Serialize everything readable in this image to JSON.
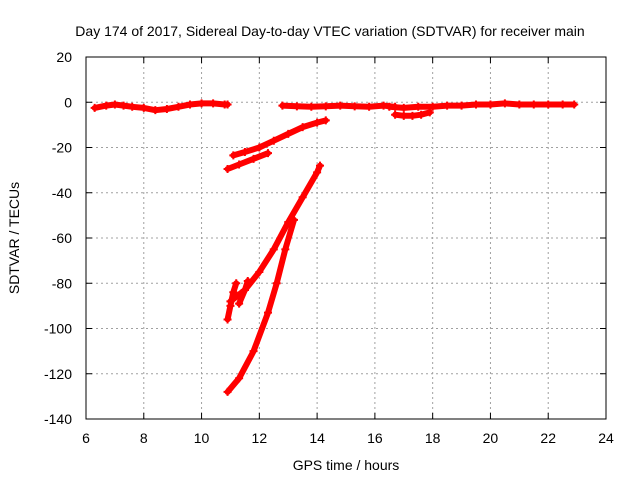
{
  "chart_data": {
    "type": "scatter",
    "title": "Day 174 of 2017, Sidereal Day-to-day VTEC variation (SDTVAR) for receiver main",
    "xlabel": "GPS time / hours",
    "ylabel": "SDTVAR / TECUs",
    "xlim": [
      6,
      24
    ],
    "ylim": [
      -140,
      20
    ],
    "xticks": [
      "6",
      "8",
      "10",
      "12",
      "14",
      "16",
      "18",
      "20",
      "22",
      "24"
    ],
    "yticks": [
      "20",
      "0",
      "-20",
      "-40",
      "-60",
      "-80",
      "-100",
      "-120",
      "-140"
    ],
    "grid": true,
    "marker_color": "#ff0000",
    "series": [
      {
        "x": [
          6.3,
          6.7,
          7.0,
          7.3,
          7.6,
          8.0,
          8.4,
          8.8,
          9.2,
          9.6,
          10.0,
          10.4,
          10.8,
          10.9
        ],
        "values": [
          -2.5,
          -1.5,
          -1.0,
          -1.5,
          -2.0,
          -2.5,
          -3.5,
          -3.0,
          -2.0,
          -1.0,
          -0.5,
          -0.5,
          -1.0,
          -1.0
        ]
      },
      {
        "x": [
          12.8,
          13.3,
          13.8,
          14.3,
          14.8,
          15.3,
          15.8,
          16.3,
          16.7
        ],
        "values": [
          -1.5,
          -1.8,
          -2.0,
          -1.8,
          -1.5,
          -1.8,
          -2.0,
          -1.5,
          -2.0
        ]
      },
      {
        "x": [
          16.7,
          17.0,
          17.3,
          17.6,
          17.9
        ],
        "values": [
          -5.5,
          -6.0,
          -6.0,
          -5.5,
          -4.5
        ]
      },
      {
        "x": [
          16.5,
          17.0,
          17.5,
          18.0,
          18.5,
          19.0,
          19.5,
          20.0,
          20.5,
          21.0,
          21.5,
          22.0,
          22.5,
          22.9
        ],
        "values": [
          -2.0,
          -2.5,
          -2.0,
          -2.0,
          -1.5,
          -1.5,
          -1.0,
          -1.0,
          -0.5,
          -1.0,
          -1.0,
          -1.0,
          -1.0,
          -1.0
        ]
      },
      {
        "x": [
          11.1,
          11.5,
          12.0,
          12.5,
          13.0,
          13.5,
          14.0,
          14.3
        ],
        "values": [
          -23.5,
          -22.0,
          -20.0,
          -17.0,
          -14.0,
          -11.0,
          -9.0,
          -8.0
        ]
      },
      {
        "x": [
          10.9,
          11.3,
          11.8,
          12.3
        ],
        "values": [
          -29.5,
          -27.5,
          -25.0,
          -22.5
        ]
      },
      {
        "x": [
          11.0,
          11.5,
          12.0,
          12.5,
          13.0,
          13.5,
          14.0,
          14.1
        ],
        "values": [
          -88.0,
          -83.0,
          -75.0,
          -65.0,
          -53.0,
          -42.0,
          -31.0,
          -28.0
        ]
      },
      {
        "x": [
          11.3,
          11.5,
          11.6
        ],
        "values": [
          -89.0,
          -83.0,
          -79.0
        ]
      },
      {
        "x": [
          10.9,
          11.0,
          11.1,
          11.2
        ],
        "values": [
          -96.0,
          -90.0,
          -84.0,
          -80.0
        ]
      },
      {
        "x": [
          10.9,
          11.3,
          11.8,
          12.3,
          12.6,
          12.9,
          13.2
        ],
        "values": [
          -128.0,
          -122.0,
          -110.0,
          -93.0,
          -80.0,
          -65.0,
          -52.0
        ]
      }
    ]
  }
}
